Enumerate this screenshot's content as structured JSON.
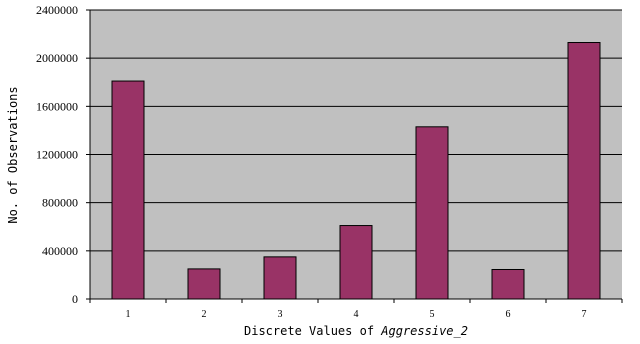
{
  "chart_data": {
    "type": "bar",
    "categories": [
      "1",
      "2",
      "3",
      "4",
      "5",
      "6",
      "7"
    ],
    "values": [
      1810000,
      250000,
      350000,
      610000,
      1430000,
      245000,
      2130000
    ],
    "ylim": [
      0,
      2400000
    ],
    "yticks": [
      "0",
      "400000",
      "800000",
      "1200000",
      "1600000",
      "2000000",
      "2400000"
    ],
    "ytick_values": [
      0,
      400000,
      800000,
      1200000,
      1600000,
      2000000,
      2400000
    ],
    "xlabel_prefix": "Discrete Values of ",
    "xlabel_variable": "Aggressive_2",
    "ylabel": "No. of Observations",
    "grid": true,
    "legend": "none",
    "colors": {
      "bar_fill": "#993366",
      "bar_stroke": "#000000",
      "plot_background": "#c0c0c0",
      "gridline": "#000000"
    }
  }
}
